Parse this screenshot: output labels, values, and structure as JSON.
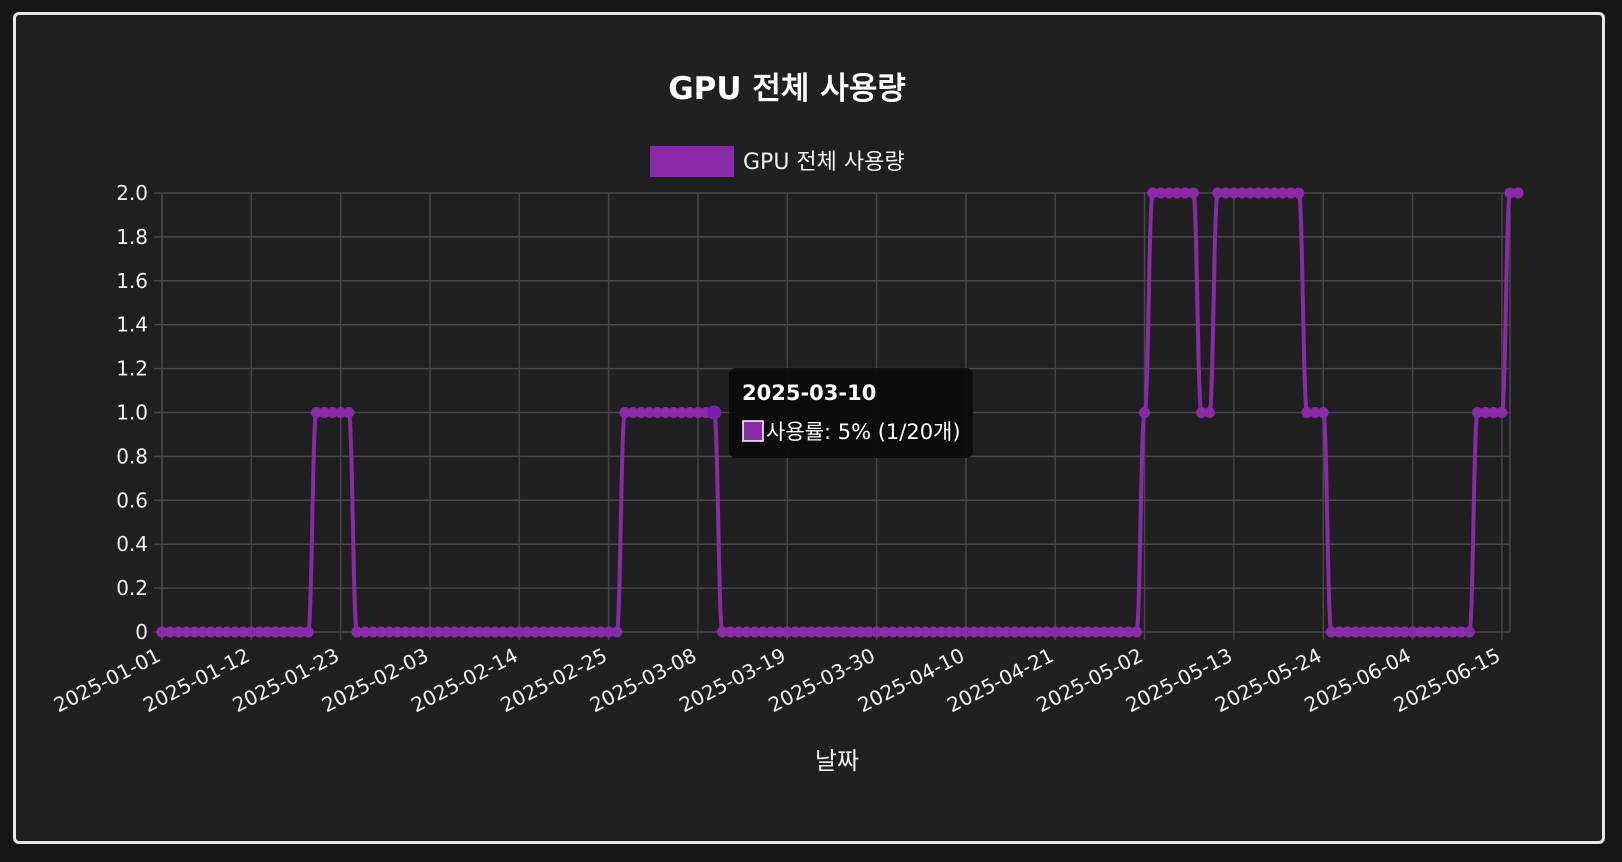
{
  "chart_data": {
    "type": "line",
    "title": "GPU 전체 사용량",
    "xlabel": "날짜",
    "ylabel": "",
    "ylim": [
      0,
      2
    ],
    "yticks": [
      "0",
      "0.2",
      "0.4",
      "0.6",
      "0.8",
      "1.0",
      "1.2",
      "1.4",
      "1.6",
      "1.8",
      "2.0"
    ],
    "x_start": "2025-01-01",
    "x_end": "2025-06-16",
    "xticks": [
      "2025-01-01",
      "2025-01-12",
      "2025-01-23",
      "2025-02-03",
      "2025-02-14",
      "2025-02-25",
      "2025-03-08",
      "2025-03-19",
      "2025-03-30",
      "2025-04-10",
      "2025-04-21",
      "2025-05-02",
      "2025-05-13",
      "2025-05-24",
      "2025-06-04",
      "2025-06-15"
    ],
    "legend": "top",
    "grid": true,
    "color": "#8a2aa8",
    "series": [
      {
        "name": "GPU 전체 사용량",
        "steps": [
          {
            "from": "2025-01-01",
            "to": "2025-01-19",
            "value": 0
          },
          {
            "from": "2025-01-20",
            "to": "2025-01-24",
            "value": 1
          },
          {
            "from": "2025-01-25",
            "to": "2025-02-26",
            "value": 0
          },
          {
            "from": "2025-02-27",
            "to": "2025-03-10",
            "value": 1
          },
          {
            "from": "2025-03-11",
            "to": "2025-05-01",
            "value": 0
          },
          {
            "from": "2025-05-02",
            "to": "2025-05-02",
            "value": 1
          },
          {
            "from": "2025-05-03",
            "to": "2025-05-08",
            "value": 2
          },
          {
            "from": "2025-05-09",
            "to": "2025-05-10",
            "value": 1
          },
          {
            "from": "2025-05-11",
            "to": "2025-05-21",
            "value": 2
          },
          {
            "from": "2025-05-22",
            "to": "2025-05-24",
            "value": 1
          },
          {
            "from": "2025-05-25",
            "to": "2025-06-11",
            "value": 0
          },
          {
            "from": "2025-06-12",
            "to": "2025-06-15",
            "value": 1
          },
          {
            "from": "2025-06-16",
            "to": "2025-06-17",
            "value": 2
          }
        ]
      }
    ],
    "tooltip": {
      "date": "2025-03-10",
      "value": 1,
      "label": "사용률: 5% (1/20개)"
    }
  }
}
